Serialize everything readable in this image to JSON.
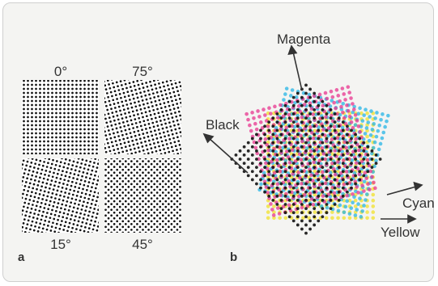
{
  "panel_a": {
    "label": "a",
    "screens": [
      {
        "angle_label": "0°",
        "angle": 0
      },
      {
        "angle_label": "75°",
        "angle": 75
      },
      {
        "angle_label": "15°",
        "angle": 15
      },
      {
        "angle_label": "45°",
        "angle": 45
      }
    ]
  },
  "panel_b": {
    "label": "b",
    "inks": [
      {
        "name": "Yellow",
        "angle": 0,
        "color": "#f2e22a"
      },
      {
        "name": "Cyan",
        "angle": 15,
        "color": "#27b6e6"
      },
      {
        "name": "Magenta",
        "angle": 75,
        "color": "#e8358f"
      },
      {
        "name": "Black",
        "angle": 45,
        "color": "#111111"
      }
    ]
  },
  "colors": {
    "frame_bg": "#f4f4f2",
    "text": "#333333",
    "dot": "#111111"
  }
}
